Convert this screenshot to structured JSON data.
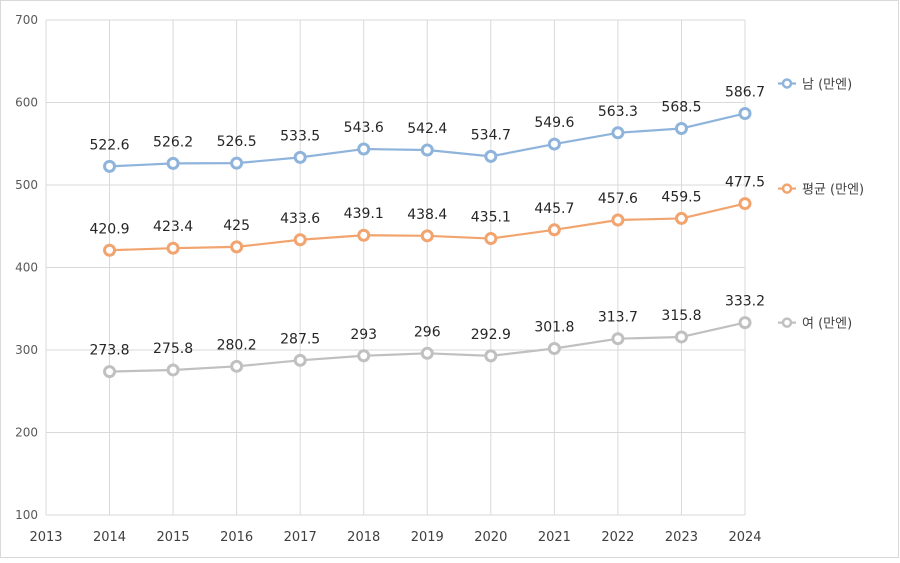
{
  "chart_data": {
    "type": "line",
    "x": [
      "2014",
      "2015",
      "2016",
      "2017",
      "2018",
      "2019",
      "2020",
      "2021",
      "2022",
      "2023",
      "2024"
    ],
    "x_axis_ticks": [
      "2013",
      "2014",
      "2015",
      "2016",
      "2017",
      "2018",
      "2019",
      "2020",
      "2021",
      "2022",
      "2023",
      "2024"
    ],
    "y_axis_ticks": [
      "100",
      "200",
      "300",
      "400",
      "500",
      "600",
      "700"
    ],
    "ylim": [
      100,
      700
    ],
    "grid": true,
    "legend_position": "right",
    "series": [
      {
        "name": "남 (만엔)",
        "color": "#8fb4dc",
        "values": [
          522.6,
          526.2,
          526.5,
          533.5,
          543.6,
          542.4,
          534.7,
          549.6,
          563.3,
          568.5,
          586.7
        ],
        "labels": [
          "522.6",
          "526.2",
          "526.5",
          "533.5",
          "543.6",
          "542.4",
          "534.7",
          "549.6",
          "563.3",
          "568.5",
          "586.7"
        ]
      },
      {
        "name": "평균 (만엔)",
        "color": "#f2a46f",
        "values": [
          420.9,
          423.4,
          425,
          433.6,
          439.1,
          438.4,
          435.1,
          445.7,
          457.6,
          459.5,
          477.5
        ],
        "labels": [
          "420.9",
          "423.4",
          "425",
          "433.6",
          "439.1",
          "438.4",
          "435.1",
          "445.7",
          "457.6",
          "459.5",
          "477.5"
        ]
      },
      {
        "name": "여 (만엔)",
        "color": "#c0c0c0",
        "values": [
          273.8,
          275.8,
          280.2,
          287.5,
          293,
          296,
          292.9,
          301.8,
          313.7,
          315.8,
          333.2
        ],
        "labels": [
          "273.8",
          "275.8",
          "280.2",
          "287.5",
          "293",
          "296",
          "292.9",
          "301.8",
          "313.7",
          "315.8",
          "333.2"
        ]
      }
    ]
  }
}
